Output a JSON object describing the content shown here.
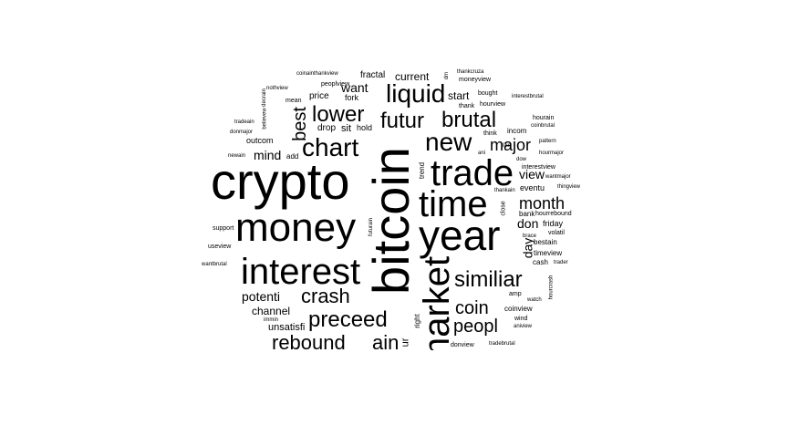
{
  "words": {
    "crypto": "crypto",
    "bitcoin": "bitcoin",
    "year": "year",
    "money": "money",
    "interest": "interest",
    "trade": "trade",
    "time": "time",
    "market": "market",
    "liquid": "liquid",
    "lower": "lower",
    "futur": "futur",
    "brutal": "brutal",
    "chart": "chart",
    "new": "new",
    "major": "major",
    "best": "best",
    "similiar": "similiar",
    "month": "month",
    "crash": "crash",
    "preceed": "preceed",
    "coin": "coin",
    "peopl": "peopl",
    "rebound": "rebound",
    "ain": "ain",
    "potenti": "potenti",
    "channel": "channel",
    "want": "want",
    "mind": "mind",
    "view": "view",
    "don": "don",
    "day": "day",
    "start": "start",
    "current": "current",
    "fractal": "fractal",
    "price": "price",
    "fork": "fork",
    "drop": "drop",
    "sit": "sit",
    "hold": "hold",
    "outcom": "outcom",
    "add": "add",
    "unsatisfi": "unsatisfi",
    "immin": "immin",
    "right": "right",
    "trend": "trend",
    "futurain": "futurain",
    "close": "close",
    "eventu": "eventu",
    "bank": "bank",
    "friday": "friday",
    "hourrebound": "hourrebound",
    "volatil": "volatil",
    "brace": "brace",
    "bestain": "bestain",
    "timeview": "timeview",
    "cash": "cash",
    "trader": "trader",
    "amp": "amp",
    "watch": "watch",
    "hourcrash": "hourcrash",
    "coinview": "coinview",
    "wind": "wind",
    "aniview": "aniview",
    "donview": "donview",
    "tradebrutal": "tradebrutal",
    "coinainthankview": "coinainthankview",
    "peoplview": "peoplview",
    "thankcruza": "thankcruza",
    "moneyview": "moneyview",
    "bought": "bought",
    "thank": "thank",
    "hourview": "hourview",
    "interestbrutal": "interestbrutal",
    "hourain": "hourain",
    "coinbrutal": "coinbrutal",
    "incom": "incom",
    "think": "think",
    "pattern": "pattern",
    "hourmajor": "hourmajor",
    "like": "like",
    "ani": "ani",
    "dow": "dow",
    "interestview": "interestview",
    "wantmajor": "wantmajor",
    "thingview": "thingview",
    "thankain": "thankain",
    "nothview": "nothview",
    "mean": "mean",
    "believew": "believew",
    "tradeain": "tradeain",
    "donmajor": "donmajor",
    "newain": "newain",
    "support": "support",
    "useview": "useview",
    "wantbrutal": "wantbrutal",
    "decrain": "decrain",
    "dm": "dm",
    "ur": "ur"
  }
}
